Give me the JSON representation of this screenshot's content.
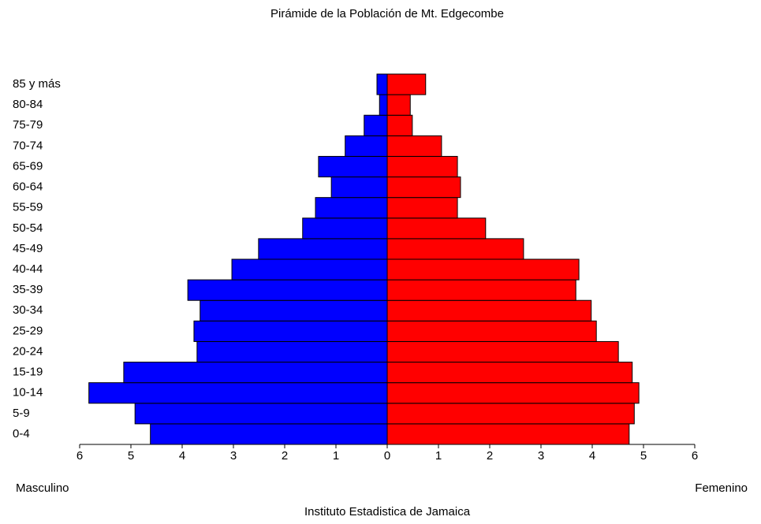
{
  "chart_data": {
    "type": "population_pyramid",
    "title": "Pirámide de la Población de Mt. Edgecombe",
    "x_label": "Instituto Estadistica de Jamaica",
    "categories": [
      "0-4",
      "5-9",
      "10-14",
      "15-19",
      "20-24",
      "25-29",
      "30-34",
      "35-39",
      "40-44",
      "45-49",
      "50-54",
      "55-59",
      "60-64",
      "65-69",
      "70-74",
      "75-79",
      "80-84",
      "85 y más"
    ],
    "series": [
      {
        "name": "Masculino",
        "color": "#0000ff",
        "side": "left",
        "values": [
          4.62,
          4.92,
          5.82,
          5.14,
          3.71,
          3.77,
          3.65,
          3.89,
          3.03,
          2.51,
          1.65,
          1.4,
          1.09,
          1.34,
          0.82,
          0.45,
          0.15,
          0.2
        ]
      },
      {
        "name": "Femenino",
        "color": "#ff0000",
        "side": "right",
        "values": [
          4.72,
          4.82,
          4.91,
          4.78,
          4.51,
          4.08,
          3.98,
          3.68,
          3.74,
          2.66,
          1.92,
          1.37,
          1.43,
          1.37,
          1.06,
          0.49,
          0.45,
          0.75
        ]
      }
    ],
    "xlim": [
      0,
      6
    ],
    "xticks": [
      0,
      1,
      2,
      3,
      4,
      5,
      6
    ]
  }
}
